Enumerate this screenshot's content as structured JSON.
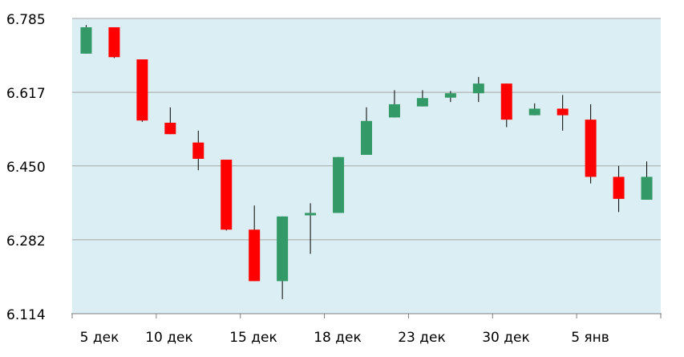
{
  "chart_data": {
    "type": "candlestick",
    "title": "",
    "xlabel": "",
    "ylabel": "",
    "ylim": [
      6.114,
      6.785
    ],
    "y_ticks": [
      "6.785",
      "6.617",
      "6.450",
      "6.282",
      "6.114"
    ],
    "x_ticks": [
      "5 дек",
      "10 дек",
      "15 дек",
      "18 дек",
      "23 дек",
      "30 дек",
      "5 янв"
    ],
    "grid": true,
    "up_color": "#339966",
    "down_color": "#ff0000",
    "plot_background": "#daeef3",
    "candles": [
      {
        "open": 6.705,
        "close": 6.765,
        "high": 6.77,
        "low": 6.705
      },
      {
        "open": 6.765,
        "close": 6.697,
        "high": 6.765,
        "low": 6.695
      },
      {
        "open": 6.692,
        "close": 6.553,
        "high": 6.692,
        "low": 6.55
      },
      {
        "open": 6.548,
        "close": 6.522,
        "high": 6.583,
        "low": 6.522
      },
      {
        "open": 6.503,
        "close": 6.466,
        "high": 6.53,
        "low": 6.44
      },
      {
        "open": 6.464,
        "close": 6.305,
        "high": 6.464,
        "low": 6.303
      },
      {
        "open": 6.305,
        "close": 6.188,
        "high": 6.36,
        "low": 6.188
      },
      {
        "open": 6.188,
        "close": 6.335,
        "high": 6.335,
        "low": 6.147
      },
      {
        "open": 6.339,
        "close": 6.343,
        "high": 6.365,
        "low": 6.25
      },
      {
        "open": 6.343,
        "close": 6.47,
        "high": 6.47,
        "low": 6.343
      },
      {
        "open": 6.475,
        "close": 6.552,
        "high": 6.583,
        "low": 6.475
      },
      {
        "open": 6.56,
        "close": 6.59,
        "high": 6.622,
        "low": 6.56
      },
      {
        "open": 6.585,
        "close": 6.604,
        "high": 6.622,
        "low": 6.585
      },
      {
        "open": 6.605,
        "close": 6.615,
        "high": 6.62,
        "low": 6.595
      },
      {
        "open": 6.615,
        "close": 6.637,
        "high": 6.652,
        "low": 6.595
      },
      {
        "open": 6.637,
        "close": 6.555,
        "high": 6.637,
        "low": 6.538
      },
      {
        "open": 6.565,
        "close": 6.58,
        "high": 6.592,
        "low": 6.565
      },
      {
        "open": 6.58,
        "close": 6.565,
        "high": 6.611,
        "low": 6.53
      },
      {
        "open": 6.555,
        "close": 6.425,
        "high": 6.59,
        "low": 6.41
      },
      {
        "open": 6.425,
        "close": 6.375,
        "high": 6.45,
        "low": 6.345
      },
      {
        "open": 6.373,
        "close": 6.425,
        "high": 6.46,
        "low": 6.373
      }
    ]
  }
}
